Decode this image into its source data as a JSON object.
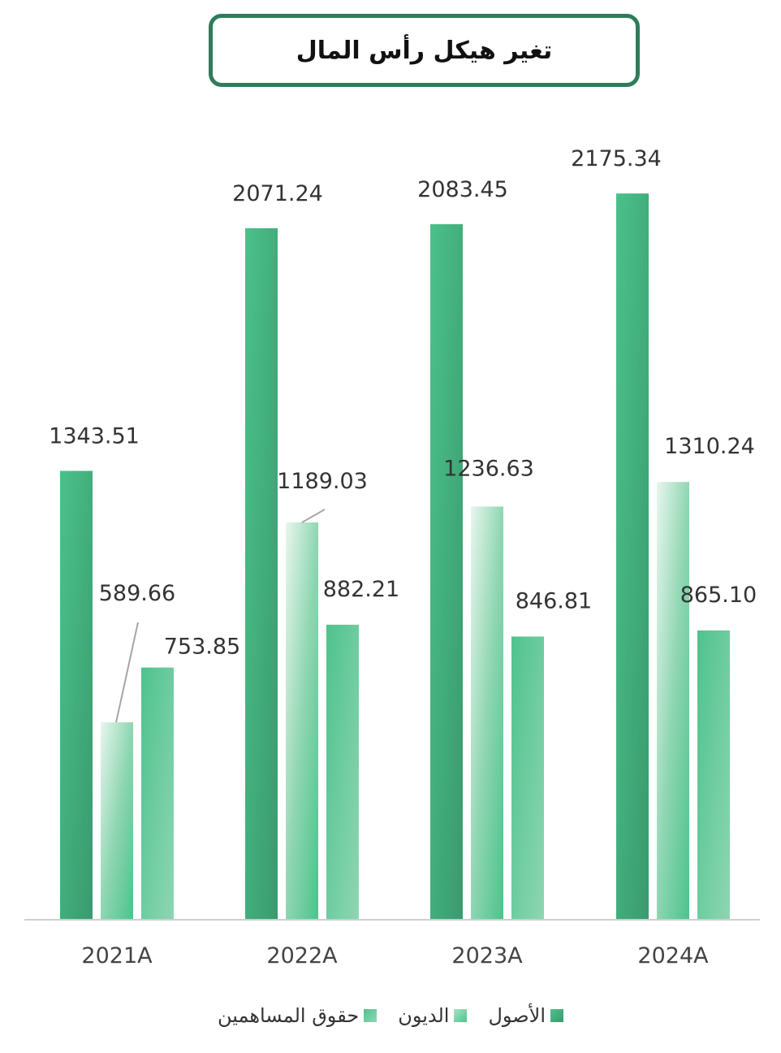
{
  "title": "تغير هيكل رأس المال",
  "chart_data": {
    "type": "bar",
    "categories": [
      "2021A",
      "2022A",
      "2023A",
      "2024A"
    ],
    "series": [
      {
        "name": "الأصول",
        "values": [
          1343.51,
          2071.24,
          2083.45,
          2175.34
        ],
        "value_labels": [
          "1343.51",
          "2071.24",
          "2083.45",
          "2175.34"
        ],
        "color": "#3fa378"
      },
      {
        "name": "الديون",
        "values": [
          589.66,
          1189.03,
          1236.63,
          1310.24
        ],
        "value_labels": [
          "589.66",
          "1189.03",
          "1236.63",
          "1310.24"
        ],
        "color": "#7fd3ae"
      },
      {
        "name": "حقوق المساهمين",
        "values": [
          753.85,
          882.21,
          846.81,
          865.1
        ],
        "value_labels": [
          "753.85",
          "882.21",
          "846.81",
          "865.10"
        ],
        "color": "#5cc494"
      }
    ],
    "legend_position": "bottom",
    "grid": false,
    "ylim": [
      0,
      2200
    ]
  }
}
